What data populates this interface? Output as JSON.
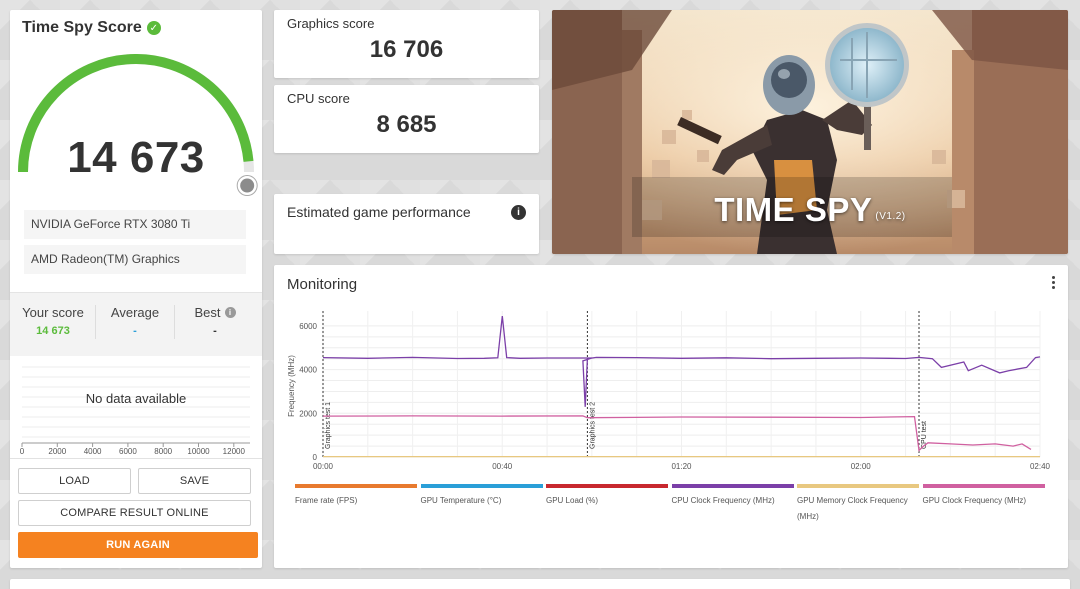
{
  "score_panel": {
    "title": "Time Spy Score",
    "score": "14 673",
    "gpu": "NVIDIA GeForce RTX 3080 Ti",
    "cpu": "AMD Radeon(TM) Graphics",
    "your_score_label": "Your score",
    "your_score_value": "14 673",
    "average_label": "Average",
    "average_value": "-",
    "best_label": "Best",
    "best_value": "-",
    "no_data": "No data available",
    "mini_axis_ticks": [
      "0",
      "2000",
      "4000",
      "6000",
      "8000",
      "10000",
      "12000"
    ],
    "load_label": "LOAD",
    "save_label": "SAVE",
    "compare_label": "COMPARE RESULT ONLINE",
    "run_again_label": "RUN AGAIN",
    "gauge_fraction": 0.97
  },
  "graphics_score": {
    "label": "Graphics score",
    "value": "16 706"
  },
  "cpu_score": {
    "label": "CPU score",
    "value": "8 685"
  },
  "estimated": {
    "label": "Estimated game performance"
  },
  "benchmark_image": {
    "title": "TIME SPY",
    "version": "(V1.2)"
  },
  "monitoring": {
    "title": "Monitoring",
    "y_label": "Frequency (MHz)",
    "markers": [
      "Graphics test 1",
      "Graphics test 2",
      "CPU test"
    ]
  },
  "colors": {
    "accent_green": "#5bbb3b",
    "accent_orange": "#f58220",
    "cpu_line": "#7b3fa8",
    "gpu_line": "#d060a0"
  },
  "chart_data": {
    "type": "line",
    "xlabel": "",
    "ylabel": "Frequency (MHz)",
    "x_ticks": [
      "00:00",
      "00:40",
      "01:20",
      "02:00",
      "02:40"
    ],
    "y_ticks": [
      "0",
      "2000",
      "4000",
      "6000"
    ],
    "ylim": [
      0,
      6500
    ],
    "xlim_seconds": [
      0,
      160
    ],
    "legend": [
      {
        "name": "Frame rate (FPS)",
        "color": "#e87a2e"
      },
      {
        "name": "GPU Temperature (°C)",
        "color": "#2a9fd8"
      },
      {
        "name": "GPU Load (%)",
        "color": "#c8282e"
      },
      {
        "name": "CPU Clock Frequency (MHz)",
        "color": "#7b3fa8"
      },
      {
        "name": "GPU Memory Clock Frequency (MHz)",
        "color": "#e8c880"
      },
      {
        "name": "GPU Clock Frequency (MHz)",
        "color": "#d060a0"
      }
    ],
    "series": [
      {
        "name": "CPU Clock Frequency (MHz)",
        "color": "#7b3fa8",
        "x": [
          0,
          10,
          20,
          30,
          36,
          39,
          40,
          41,
          44,
          50,
          60,
          58,
          58.5,
          59,
          61,
          70,
          80,
          90,
          100,
          110,
          120,
          130,
          133,
          136,
          138,
          143,
          144,
          147,
          151,
          153,
          157,
          159,
          160
        ],
        "y": [
          4550,
          4520,
          4560,
          4510,
          4520,
          4540,
          6450,
          4550,
          4520,
          4530,
          4530,
          4400,
          2300,
          4500,
          4560,
          4550,
          4520,
          4540,
          4500,
          4520,
          4530,
          4510,
          4560,
          4500,
          4100,
          4350,
          3950,
          4200,
          3850,
          3950,
          4100,
          4550,
          4580
        ]
      },
      {
        "name": "GPU Clock Frequency (MHz)",
        "color": "#d060a0",
        "x": [
          0,
          20,
          40,
          58,
          59,
          80,
          100,
          120,
          132,
          133,
          134,
          135,
          140,
          145,
          150,
          154,
          156,
          158
        ],
        "y": [
          1870,
          1880,
          1870,
          1880,
          1800,
          1830,
          1820,
          1810,
          1850,
          300,
          500,
          650,
          600,
          550,
          600,
          500,
          600,
          350
        ]
      },
      {
        "name": "GPU Memory Clock Frequency (MHz)",
        "color": "#e8c880",
        "x": [
          0,
          160
        ],
        "y": [
          20,
          20
        ]
      }
    ],
    "markers_seconds": [
      0,
      59,
      133
    ]
  }
}
